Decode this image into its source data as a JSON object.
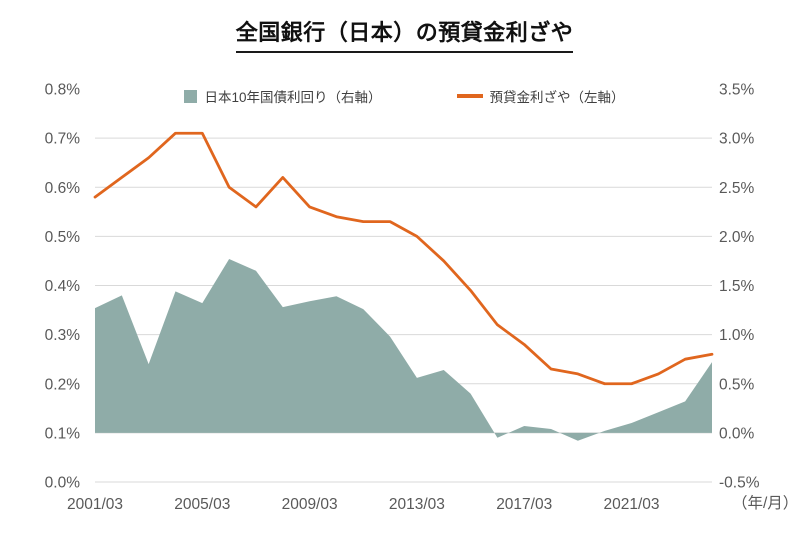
{
  "chart_data": {
    "type": "combo",
    "subtypes": [
      "area",
      "line"
    ],
    "title": "全国銀行（日本）の預貸金利ざや",
    "x_unit_label": "（年/月）",
    "grid": true,
    "legend_position": "top",
    "x_values": [
      "2001/03",
      "2002/03",
      "2003/03",
      "2004/03",
      "2005/03",
      "2006/03",
      "2007/03",
      "2008/03",
      "2009/03",
      "2010/03",
      "2011/03",
      "2012/03",
      "2013/03",
      "2014/03",
      "2015/03",
      "2016/03",
      "2017/03",
      "2018/03",
      "2019/03",
      "2020/03",
      "2021/03",
      "2022/03",
      "2023/03",
      "2024/03"
    ],
    "x_tick_labels": [
      "2001/03",
      "2005/03",
      "2009/03",
      "2013/03",
      "2017/03",
      "2021/03"
    ],
    "left_axis": {
      "min": 0.0,
      "max": 0.8,
      "tick_step": 0.1,
      "tick_values": [
        0.0,
        0.1,
        0.2,
        0.3,
        0.4,
        0.5,
        0.6,
        0.7,
        0.8
      ],
      "tick_labels": [
        "0.0%",
        "0.1%",
        "0.2%",
        "0.3%",
        "0.4%",
        "0.5%",
        "0.6%",
        "0.7%",
        "0.8%"
      ]
    },
    "right_axis": {
      "min": -0.5,
      "max": 3.5,
      "tick_step": 0.5,
      "tick_values": [
        -0.5,
        0.0,
        0.5,
        1.0,
        1.5,
        2.0,
        2.5,
        3.0,
        3.5
      ],
      "tick_labels": [
        "-0.5%",
        "0.0%",
        "0.5%",
        "1.0%",
        "1.5%",
        "2.0%",
        "2.5%",
        "3.0%",
        "3.5%"
      ]
    },
    "series": [
      {
        "name": "日本10年国債利回り（右軸）",
        "type": "area",
        "axis": "right",
        "color": "#8FACA8",
        "values": [
          1.27,
          1.4,
          0.7,
          1.44,
          1.32,
          1.77,
          1.65,
          1.28,
          1.34,
          1.39,
          1.26,
          0.98,
          0.56,
          0.64,
          0.4,
          -0.05,
          0.07,
          0.04,
          -0.08,
          0.02,
          0.1,
          0.21,
          0.32,
          0.72
        ]
      },
      {
        "name": "預貸金利ざや（左軸）",
        "type": "line",
        "axis": "left",
        "color": "#E0661E",
        "values": [
          0.58,
          0.62,
          0.66,
          0.71,
          0.71,
          0.6,
          0.56,
          0.62,
          0.56,
          0.54,
          0.53,
          0.53,
          0.5,
          0.45,
          0.39,
          0.32,
          0.28,
          0.23,
          0.22,
          0.2,
          0.2,
          0.22,
          0.25,
          0.26
        ]
      }
    ],
    "colors": {
      "gridline": "#D9D9D9",
      "axis_text": "#595959",
      "title_text": "#111111"
    }
  }
}
